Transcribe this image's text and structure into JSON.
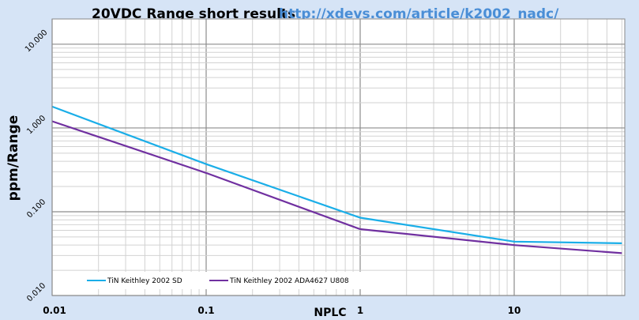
{
  "chart_data": {
    "type": "line",
    "title": "20VDC Range short results",
    "url": "http://xdevs.com/article/k2002_nadc/",
    "xlabel": "NPLC",
    "ylabel": "ppm/Range",
    "x_scale": "log",
    "y_scale": "log",
    "xlim": [
      0.01,
      50
    ],
    "ylim": [
      0.01,
      20
    ],
    "x_ticks": [
      0.01,
      0.1,
      1,
      10
    ],
    "x_tick_labels": [
      "0.01",
      "0.1",
      "1",
      "10"
    ],
    "y_ticks": [
      0.01,
      0.1,
      1,
      10
    ],
    "y_tick_labels": [
      "0.010",
      "0.100",
      "1.000",
      "10.000"
    ],
    "grid": true,
    "legend_position": "bottom-left",
    "series": [
      {
        "name": "TiN Keithley 2002 SD",
        "color": "#1aaee8",
        "points": [
          [
            0.01,
            1.8
          ],
          [
            0.1,
            0.37
          ],
          [
            1,
            0.085
          ],
          [
            10,
            0.044
          ],
          [
            50,
            0.042
          ]
        ]
      },
      {
        "name": "TiN Keithley 2002 ADA4627 U808",
        "color": "#7030a0",
        "points": [
          [
            0.01,
            1.2
          ],
          [
            0.1,
            0.29
          ],
          [
            1,
            0.062
          ],
          [
            10,
            0.04
          ],
          [
            50,
            0.032
          ]
        ]
      }
    ]
  }
}
